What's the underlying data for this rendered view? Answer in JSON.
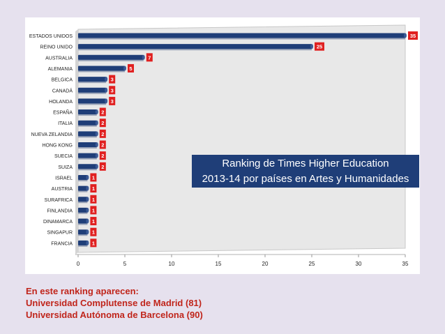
{
  "chart_data": {
    "type": "bar",
    "orientation": "horizontal",
    "title": [
      "Ranking de Times Higher Education",
      "2013-14 por países en Artes y Humanidades"
    ],
    "categories": [
      "ESTADOS UNIDOS",
      "REINO UNIDO",
      "AUSTRALIA",
      "ALEMANIA",
      "BELGICA",
      "CANADÁ",
      "HOLANDA",
      "ESPAÑA",
      "ITALIA",
      "NUEVA ZELANDIA",
      "HONG KONG",
      "SUECIA",
      "SUIZA",
      "ISRAEL",
      "AUSTRIA",
      "SURAFRICA",
      "FINLANDIA",
      "DINAMARCA",
      "SINGAPUR",
      "FRANCIA"
    ],
    "values": [
      35,
      25,
      7,
      5,
      3,
      3,
      3,
      2,
      2,
      2,
      2,
      2,
      2,
      1,
      1,
      1,
      1,
      1,
      1,
      1
    ],
    "xlim": [
      0,
      35
    ],
    "xticks": [
      0,
      5,
      10,
      15,
      20,
      25,
      30,
      35
    ],
    "grid": false,
    "colors": {
      "bar": "#1f3e78",
      "label_bg": "#e02020",
      "label_text": "#ffffff",
      "plot_bg": "#e8e8e8"
    }
  },
  "note": {
    "line1": "En este ranking aparecen:",
    "line2": "Universidad Complutense de Madrid (81)",
    "line3": "Universidad Autónoma de Barcelona (90)"
  }
}
